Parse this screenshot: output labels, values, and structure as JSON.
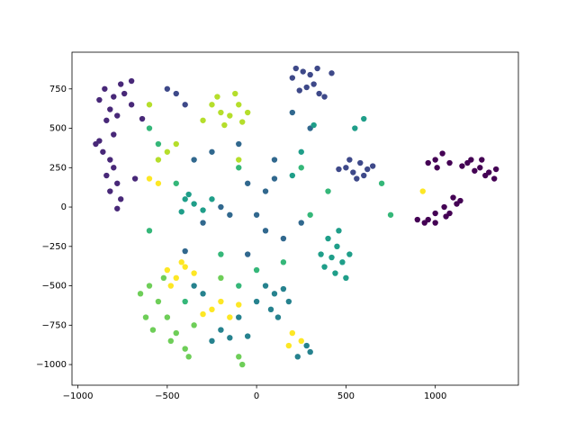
{
  "chart_data": {
    "type": "scatter",
    "xlim": [
      -1033,
      1465
    ],
    "ylim": [
      -1131,
      983
    ],
    "xticks": [
      {
        "value": -1000,
        "label": "−1000"
      },
      {
        "value": -500,
        "label": "−500"
      },
      0,
      500,
      1000
    ],
    "yticks": [
      {
        "value": -1000,
        "label": "−1000"
      },
      {
        "value": -750,
        "label": "−750"
      },
      {
        "value": -500,
        "label": "−500"
      },
      {
        "value": -250,
        "label": "−250"
      },
      0,
      250,
      500,
      750
    ],
    "grid": false,
    "series": [
      {
        "color": "#440154",
        "x": [
          960,
          1000,
          1040,
          1080,
          1150,
          1200,
          1250,
          1300,
          1330,
          1280,
          1220,
          1180,
          1100,
          1120,
          1080,
          1050,
          1000,
          960,
          940,
          1060,
          1140,
          1010,
          1260,
          1340,
          900,
          1000
        ],
        "y": [
          280,
          300,
          340,
          280,
          260,
          300,
          250,
          220,
          180,
          200,
          230,
          280,
          60,
          20,
          -40,
          0,
          -40,
          -80,
          -100,
          -60,
          40,
          250,
          300,
          240,
          -80,
          -100
        ]
      },
      {
        "color": "#482878",
        "x": [
          -850,
          -800,
          -760,
          -700,
          -880,
          -820,
          -780,
          -840,
          -900,
          -860,
          -820,
          -800,
          -840,
          -780,
          -820,
          -760,
          -880,
          -800,
          -740,
          -700,
          -680,
          -780,
          -640
        ],
        "y": [
          750,
          700,
          780,
          800,
          680,
          620,
          580,
          550,
          400,
          350,
          300,
          250,
          200,
          150,
          100,
          50,
          420,
          460,
          720,
          650,
          180,
          -10,
          560
        ]
      },
      {
        "color": "#3e4989",
        "x": [
          220,
          260,
          300,
          320,
          280,
          240,
          350,
          380,
          200,
          340,
          420,
          500,
          540,
          580,
          620,
          560,
          520,
          650,
          600,
          460,
          -450,
          -400,
          -500
        ],
        "y": [
          880,
          860,
          840,
          780,
          760,
          740,
          720,
          700,
          820,
          880,
          850,
          250,
          220,
          280,
          240,
          180,
          300,
          260,
          200,
          240,
          720,
          650,
          750
        ]
      },
      {
        "color": "#31688e",
        "x": [
          -100,
          -250,
          -350,
          -50,
          50,
          100,
          -150,
          -300,
          50,
          150,
          -50,
          200,
          300,
          -200,
          0,
          100,
          -400,
          250
        ],
        "y": [
          400,
          350,
          300,
          150,
          100,
          300,
          -50,
          -100,
          -150,
          -200,
          -300,
          600,
          500,
          0,
          -50,
          180,
          -280,
          -100
        ]
      },
      {
        "color": "#26828e",
        "x": [
          50,
          100,
          150,
          0,
          80,
          180,
          -100,
          -200,
          -150,
          -250,
          280,
          300,
          230,
          -300,
          -350,
          120,
          -50
        ],
        "y": [
          -500,
          -550,
          -520,
          -600,
          -650,
          -600,
          -700,
          -780,
          -830,
          -850,
          -880,
          -920,
          -950,
          -550,
          -500,
          -700,
          -820
        ]
      },
      {
        "color": "#1f9e89",
        "x": [
          400,
          450,
          420,
          480,
          380,
          520,
          440,
          360,
          500,
          460,
          -400,
          -350,
          -300,
          -420,
          -380,
          -250,
          550,
          600,
          320,
          250,
          200
        ],
        "y": [
          -200,
          -250,
          -320,
          -350,
          -380,
          -300,
          -420,
          -300,
          -450,
          -150,
          50,
          20,
          -20,
          -30,
          80,
          50,
          500,
          560,
          520,
          350,
          200
        ]
      },
      {
        "color": "#35b779",
        "x": [
          -600,
          -550,
          -100,
          250,
          300,
          -200,
          0,
          150,
          -400,
          -100,
          -600,
          700,
          750,
          -450,
          400
        ],
        "y": [
          500,
          400,
          250,
          250,
          -50,
          -300,
          -400,
          -350,
          -600,
          -500,
          -150,
          150,
          -50,
          150,
          100
        ]
      },
      {
        "color": "#6ece58",
        "x": [
          -600,
          -550,
          -500,
          -580,
          -450,
          -400,
          -480,
          -380,
          -350,
          -520,
          -650,
          -100,
          -80,
          -200,
          -620
        ],
        "y": [
          -500,
          -600,
          -700,
          -780,
          -800,
          -900,
          -850,
          -950,
          -750,
          -450,
          -550,
          -950,
          -1000,
          -450,
          -700
        ]
      },
      {
        "color": "#b5de2b",
        "x": [
          -250,
          -200,
          -150,
          -100,
          -50,
          -220,
          -120,
          -80,
          -300,
          -180,
          -500,
          -550,
          -450,
          -100,
          -600
        ],
        "y": [
          650,
          600,
          580,
          650,
          600,
          700,
          720,
          540,
          550,
          520,
          350,
          300,
          400,
          300,
          650
        ]
      },
      {
        "color": "#fde725",
        "x": [
          -500,
          -450,
          -400,
          -350,
          -480,
          -420,
          -200,
          -250,
          -150,
          -300,
          -100,
          200,
          180,
          250,
          -550,
          -600,
          930
        ],
        "y": [
          -400,
          -450,
          -380,
          -420,
          -500,
          -350,
          -600,
          -650,
          -700,
          -680,
          -620,
          -800,
          -880,
          -850,
          150,
          180,
          100
        ]
      }
    ]
  }
}
